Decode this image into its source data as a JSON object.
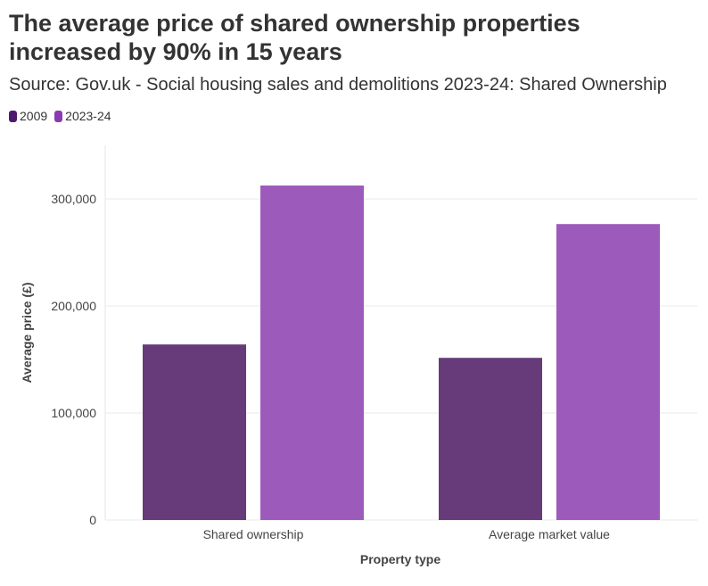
{
  "chart_data": {
    "type": "bar",
    "title": "The average price of shared ownership properties increased by 90% in 15 years",
    "subtitle": "Source: Gov.uk - Social housing sales and demolitions 2023-24: Shared Ownership",
    "categories": [
      "Shared ownership",
      "Average market value"
    ],
    "series": [
      {
        "name": "2009",
        "values": [
          164000,
          151500
        ],
        "color": "#673a7a",
        "legend_color": "#4f1a6b"
      },
      {
        "name": "2023-24",
        "values": [
          312500,
          276500
        ],
        "color": "#9c5bbb",
        "legend_color": "#8b3bb0"
      }
    ],
    "xlabel": "Property type",
    "ylabel": "Average price (£)",
    "ylim": [
      0,
      350000
    ],
    "yticks": [
      0,
      100000,
      200000,
      300000
    ],
    "ytick_labels": [
      "0",
      "100,000",
      "200,000",
      "300,000"
    ],
    "grid": true,
    "legend_position": "top-left"
  }
}
